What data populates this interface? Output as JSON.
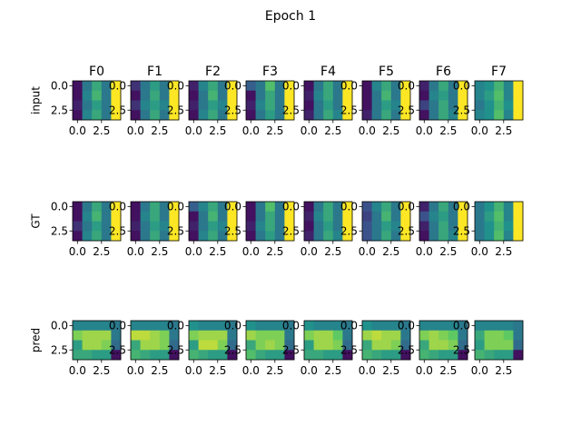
{
  "chart_data": {
    "type": "heatmap",
    "title": "Epoch 1",
    "columns": [
      "F0",
      "F1",
      "F2",
      "F3",
      "F4",
      "F5",
      "F6",
      "F7"
    ],
    "row_labels": [
      "input",
      "GT",
      "pred"
    ],
    "x_ticks": [
      "0.0",
      "2.5"
    ],
    "y_ticks": [
      "0.0",
      "2.5"
    ],
    "colormap": [
      "#440154",
      "#3b528b",
      "#21918c",
      "#5ec962",
      "#fde725"
    ],
    "value_range": [
      0,
      1
    ],
    "grids": {
      "input": [
        [
          [
            0.05,
            0.4,
            0.6,
            0.4,
            1.0
          ],
          [
            0.05,
            0.45,
            0.65,
            0.4,
            1.0
          ],
          [
            0.1,
            0.4,
            0.55,
            0.4,
            1.0
          ],
          [
            0.05,
            0.45,
            0.6,
            0.4,
            1.0
          ]
        ],
        [
          [
            0.15,
            0.4,
            0.55,
            0.4,
            1.0
          ],
          [
            0.05,
            0.4,
            0.6,
            0.4,
            1.0
          ],
          [
            0.15,
            0.45,
            0.55,
            0.45,
            1.0
          ],
          [
            0.05,
            0.4,
            0.6,
            0.4,
            1.0
          ]
        ],
        [
          [
            0.1,
            0.45,
            0.6,
            0.4,
            1.0
          ],
          [
            0.05,
            0.4,
            0.65,
            0.4,
            1.0
          ],
          [
            0.1,
            0.4,
            0.55,
            0.45,
            1.0
          ],
          [
            0.05,
            0.45,
            0.6,
            0.4,
            1.0
          ]
        ],
        [
          [
            0.3,
            0.4,
            0.7,
            0.4,
            1.0
          ],
          [
            0.05,
            0.4,
            0.6,
            0.4,
            1.0
          ],
          [
            0.1,
            0.45,
            0.6,
            0.4,
            1.0
          ],
          [
            0.05,
            0.4,
            0.55,
            0.4,
            1.0
          ]
        ],
        [
          [
            0.05,
            0.4,
            0.6,
            0.4,
            1.0
          ],
          [
            0.1,
            0.45,
            0.6,
            0.4,
            1.0
          ],
          [
            0.05,
            0.4,
            0.55,
            0.4,
            1.0
          ],
          [
            0.1,
            0.4,
            0.6,
            0.45,
            1.0
          ]
        ],
        [
          [
            0.05,
            0.45,
            0.6,
            0.4,
            1.0
          ],
          [
            0.05,
            0.4,
            0.65,
            0.4,
            1.0
          ],
          [
            0.05,
            0.4,
            0.55,
            0.45,
            1.0
          ],
          [
            0.1,
            0.4,
            0.6,
            0.4,
            1.0
          ]
        ],
        [
          [
            0.1,
            0.4,
            0.6,
            0.4,
            1.0
          ],
          [
            0.05,
            0.45,
            0.55,
            0.4,
            1.0
          ],
          [
            0.2,
            0.4,
            0.6,
            0.4,
            1.0
          ],
          [
            0.05,
            0.4,
            0.6,
            0.45,
            1.0
          ]
        ],
        [
          [
            0.45,
            0.5,
            0.65,
            0.45,
            1.0
          ],
          [
            0.45,
            0.55,
            0.7,
            0.45,
            1.0
          ],
          [
            0.4,
            0.5,
            0.65,
            0.5,
            1.0
          ],
          [
            0.45,
            0.5,
            0.7,
            0.45,
            1.0
          ]
        ]
      ],
      "GT": [
        [
          [
            0.05,
            0.4,
            0.6,
            0.4,
            1.0
          ],
          [
            0.05,
            0.45,
            0.65,
            0.4,
            1.0
          ],
          [
            0.15,
            0.4,
            0.55,
            0.4,
            1.0
          ],
          [
            0.05,
            0.45,
            0.6,
            0.4,
            1.0
          ]
        ],
        [
          [
            0.05,
            0.4,
            0.6,
            0.4,
            1.0
          ],
          [
            0.05,
            0.45,
            0.6,
            0.4,
            1.0
          ],
          [
            0.1,
            0.4,
            0.55,
            0.45,
            1.0
          ],
          [
            0.05,
            0.4,
            0.6,
            0.4,
            1.0
          ]
        ],
        [
          [
            0.3,
            0.45,
            0.6,
            0.4,
            1.0
          ],
          [
            0.05,
            0.4,
            0.65,
            0.4,
            1.0
          ],
          [
            0.1,
            0.4,
            0.55,
            0.45,
            1.0
          ],
          [
            0.05,
            0.45,
            0.6,
            0.4,
            1.0
          ]
        ],
        [
          [
            0.05,
            0.4,
            0.7,
            0.4,
            1.0
          ],
          [
            0.05,
            0.4,
            0.6,
            0.4,
            1.0
          ],
          [
            0.1,
            0.45,
            0.6,
            0.4,
            1.0
          ],
          [
            0.05,
            0.4,
            0.55,
            0.4,
            1.0
          ]
        ],
        [
          [
            0.05,
            0.4,
            0.6,
            0.4,
            1.0
          ],
          [
            0.1,
            0.45,
            0.6,
            0.4,
            1.0
          ],
          [
            0.05,
            0.4,
            0.55,
            0.4,
            1.0
          ],
          [
            0.1,
            0.4,
            0.6,
            0.45,
            1.0
          ]
        ],
        [
          [
            0.25,
            0.45,
            0.6,
            0.4,
            1.0
          ],
          [
            0.2,
            0.4,
            0.65,
            0.4,
            1.0
          ],
          [
            0.25,
            0.4,
            0.55,
            0.45,
            1.0
          ],
          [
            0.25,
            0.4,
            0.6,
            0.4,
            1.0
          ]
        ],
        [
          [
            0.1,
            0.4,
            0.6,
            0.4,
            1.0
          ],
          [
            0.25,
            0.45,
            0.55,
            0.4,
            1.0
          ],
          [
            0.1,
            0.4,
            0.6,
            0.4,
            1.0
          ],
          [
            0.05,
            0.4,
            0.6,
            0.45,
            1.0
          ]
        ],
        [
          [
            0.4,
            0.5,
            0.65,
            0.45,
            1.0
          ],
          [
            0.4,
            0.55,
            0.7,
            0.45,
            1.0
          ],
          [
            0.4,
            0.5,
            0.65,
            0.5,
            1.0
          ],
          [
            0.4,
            0.5,
            0.7,
            0.45,
            1.0
          ]
        ]
      ],
      "pred": [
        [
          [
            0.45,
            0.45,
            0.45,
            0.45,
            0.4
          ],
          [
            0.8,
            0.85,
            0.85,
            0.85,
            0.4
          ],
          [
            0.55,
            0.85,
            0.85,
            0.8,
            0.35
          ],
          [
            0.6,
            0.6,
            0.55,
            0.55,
            0.05
          ]
        ],
        [
          [
            0.45,
            0.45,
            0.45,
            0.45,
            0.4
          ],
          [
            0.9,
            0.9,
            0.85,
            0.8,
            0.4
          ],
          [
            0.6,
            0.85,
            0.85,
            0.8,
            0.35
          ],
          [
            0.65,
            0.6,
            0.55,
            0.55,
            0.05
          ]
        ],
        [
          [
            0.5,
            0.45,
            0.45,
            0.45,
            0.4
          ],
          [
            0.8,
            0.85,
            0.85,
            0.85,
            0.4
          ],
          [
            0.55,
            0.9,
            0.9,
            0.8,
            0.35
          ],
          [
            0.65,
            0.6,
            0.55,
            0.55,
            0.05
          ]
        ],
        [
          [
            0.5,
            0.45,
            0.45,
            0.45,
            0.4
          ],
          [
            0.85,
            0.8,
            0.8,
            0.8,
            0.4
          ],
          [
            0.6,
            0.8,
            0.85,
            0.8,
            0.35
          ],
          [
            0.7,
            0.6,
            0.55,
            0.55,
            0.05
          ]
        ],
        [
          [
            0.5,
            0.45,
            0.45,
            0.45,
            0.4
          ],
          [
            0.8,
            0.85,
            0.85,
            0.75,
            0.4
          ],
          [
            0.55,
            0.85,
            0.85,
            0.8,
            0.35
          ],
          [
            0.6,
            0.6,
            0.55,
            0.55,
            0.05
          ]
        ],
        [
          [
            0.5,
            0.45,
            0.45,
            0.45,
            0.4
          ],
          [
            0.85,
            0.9,
            0.85,
            0.85,
            0.4
          ],
          [
            0.6,
            0.85,
            0.85,
            0.8,
            0.35
          ],
          [
            0.65,
            0.6,
            0.55,
            0.55,
            0.05
          ]
        ],
        [
          [
            0.45,
            0.45,
            0.45,
            0.45,
            0.4
          ],
          [
            0.8,
            0.85,
            0.8,
            0.75,
            0.4
          ],
          [
            0.6,
            0.85,
            0.85,
            0.8,
            0.35
          ],
          [
            0.65,
            0.6,
            0.55,
            0.55,
            0.05
          ]
        ],
        [
          [
            0.45,
            0.45,
            0.45,
            0.45,
            0.4
          ],
          [
            0.6,
            0.8,
            0.8,
            0.75,
            0.4
          ],
          [
            0.55,
            0.8,
            0.8,
            0.8,
            0.35
          ],
          [
            0.65,
            0.6,
            0.55,
            0.55,
            0.05
          ]
        ]
      ]
    }
  }
}
